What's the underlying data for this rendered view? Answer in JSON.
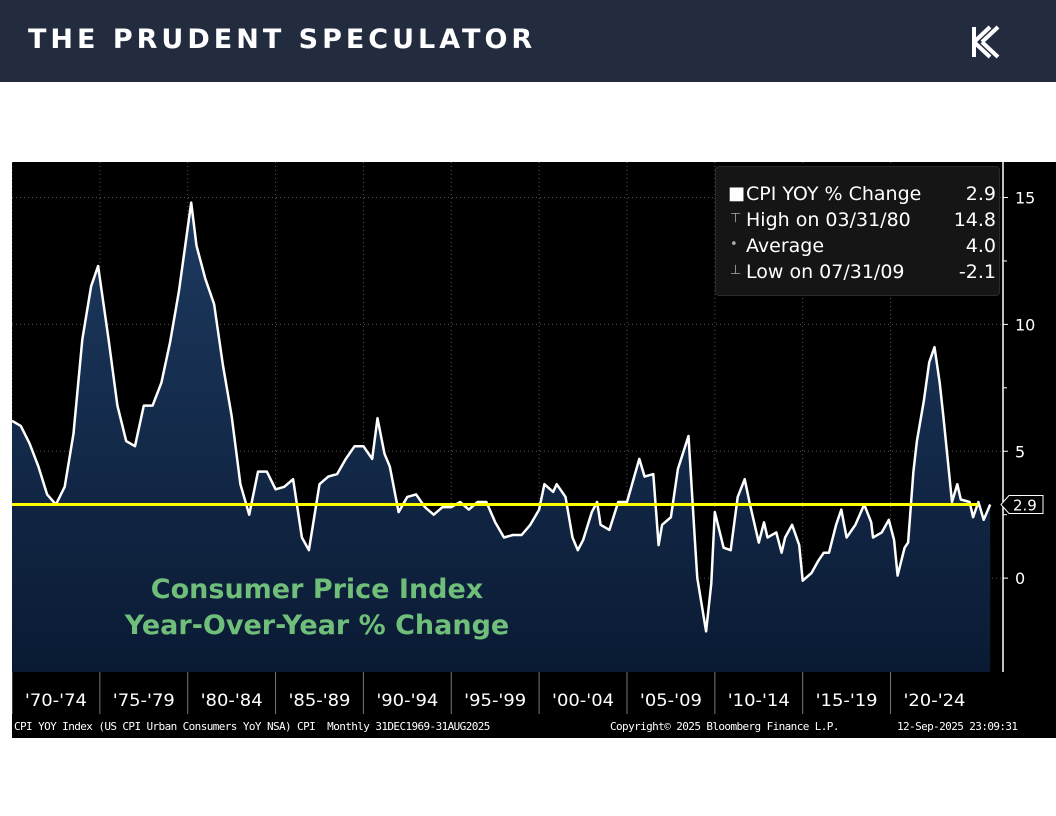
{
  "header": {
    "brand": "THE PRUDENT SPECULATOR",
    "logo_icon": "tps-k-logo-icon"
  },
  "chart_data": {
    "type": "area",
    "title": "Consumer Price Index",
    "subtitle": "Year-Over-Year % Change",
    "x_tick_labels": [
      "'70-'74",
      "'75-'79",
      "'80-'84",
      "'85-'89",
      "'90-'94",
      "'95-'99",
      "'00-'04",
      "'05-'09",
      "'10-'14",
      "'15-'19",
      "'20-'24"
    ],
    "y_ticks": [
      0,
      5,
      10,
      15
    ],
    "ylim": [
      -3.7,
      16.4
    ],
    "xlim": [
      1970.0,
      2026.4
    ],
    "grid": true,
    "legend_placement": "top-right",
    "legend": [
      {
        "label": "CPI YOY % Change",
        "value": "2.9"
      },
      {
        "label": "High on 03/31/80",
        "value": "14.8"
      },
      {
        "label": "Average",
        "value": "4.0"
      },
      {
        "label": "Low on 07/31/09",
        "value": "-2.1"
      }
    ],
    "last_value_label": "2.9",
    "reference_line": {
      "value": 2.9,
      "color": "#ffff00"
    },
    "colors": {
      "line": "#ffffff",
      "fill_top": "#1d3a60",
      "fill_bottom": "#0a1a33",
      "text_overlay": "#6fbf7a"
    },
    "series": [
      {
        "x": [
          1970.0,
          1970.5,
          1971.0,
          1971.5,
          1972.0,
          1972.5,
          1973.0,
          1973.5,
          1974.0,
          1974.5,
          1974.9,
          1975.5,
          1976.0,
          1976.5,
          1977.0,
          1977.5,
          1978.0,
          1978.5,
          1979.0,
          1979.5,
          1980.2,
          1980.5,
          1981.0,
          1981.5,
          1982.0,
          1982.5,
          1983.0,
          1983.5,
          1984.0,
          1984.5,
          1985.0,
          1985.5,
          1986.0,
          1986.5,
          1986.9,
          1987.5,
          1988.0,
          1988.5,
          1989.0,
          1989.5,
          1990.0,
          1990.5,
          1990.8,
          1991.2,
          1991.5,
          1992.0,
          1992.5,
          1993.0,
          1993.5,
          1994.0,
          1994.5,
          1995.0,
          1995.5,
          1996.0,
          1996.5,
          1997.0,
          1997.5,
          1998.0,
          1998.5,
          1999.0,
          1999.5,
          2000.0,
          2000.3,
          2000.8,
          2001.0,
          2001.5,
          2001.9,
          2002.2,
          2002.5,
          2003.0,
          2003.3,
          2003.5,
          2004.0,
          2004.5,
          2005.0,
          2005.7,
          2006.0,
          2006.5,
          2006.8,
          2007.0,
          2007.5,
          2007.9,
          2008.5,
          2008.9,
          2009.0,
          2009.5,
          2009.8,
          2010.0,
          2010.5,
          2010.9,
          2011.3,
          2011.7,
          2012.0,
          2012.5,
          2012.8,
          2013.0,
          2013.5,
          2013.8,
          2014.0,
          2014.4,
          2014.8,
          2015.0,
          2015.5,
          2015.9,
          2016.2,
          2016.5,
          2016.9,
          2017.2,
          2017.5,
          2018.0,
          2018.5,
          2018.9,
          2019.0,
          2019.5,
          2019.9,
          2020.2,
          2020.4,
          2020.8,
          2021.0,
          2021.3,
          2021.5,
          2021.9,
          2022.2,
          2022.5,
          2022.8,
          2023.0,
          2023.5,
          2023.8,
          2024.0,
          2024.5,
          2024.7,
          2025.0,
          2025.3,
          2025.67
        ],
        "y": [
          6.2,
          6.0,
          5.3,
          4.4,
          3.3,
          2.9,
          3.6,
          5.7,
          9.4,
          11.5,
          12.3,
          9.4,
          6.8,
          5.4,
          5.2,
          6.8,
          6.8,
          7.7,
          9.3,
          11.3,
          14.8,
          13.1,
          11.8,
          10.8,
          8.4,
          6.4,
          3.7,
          2.5,
          4.2,
          4.2,
          3.5,
          3.6,
          3.9,
          1.6,
          1.1,
          3.7,
          4.0,
          4.1,
          4.7,
          5.2,
          5.2,
          4.7,
          6.3,
          4.9,
          4.4,
          2.6,
          3.2,
          3.3,
          2.8,
          2.5,
          2.8,
          2.8,
          3.0,
          2.7,
          3.0,
          3.0,
          2.2,
          1.6,
          1.7,
          1.7,
          2.1,
          2.7,
          3.7,
          3.4,
          3.7,
          3.2,
          1.6,
          1.1,
          1.5,
          2.6,
          3.0,
          2.1,
          1.9,
          3.0,
          3.0,
          4.7,
          4.0,
          4.1,
          1.3,
          2.1,
          2.4,
          4.3,
          5.6,
          1.1,
          0.0,
          -2.1,
          -0.2,
          2.6,
          1.2,
          1.1,
          3.2,
          3.9,
          2.9,
          1.4,
          2.2,
          1.6,
          1.8,
          1.0,
          1.6,
          2.1,
          1.3,
          -0.1,
          0.2,
          0.7,
          1.0,
          1.0,
          2.1,
          2.7,
          1.6,
          2.1,
          2.9,
          2.2,
          1.6,
          1.8,
          2.3,
          1.5,
          0.1,
          1.2,
          1.4,
          4.2,
          5.4,
          7.0,
          8.5,
          9.1,
          7.7,
          6.4,
          3.0,
          3.7,
          3.1,
          3.0,
          2.4,
          3.0,
          2.3,
          2.9
        ]
      }
    ]
  },
  "footer": {
    "source": "CPI YOY Index (US CPI Urban Consumers YoY NSA) CPI  Monthly 31DEC1969-31AUG2025",
    "copyright": "Copyright© 2025 Bloomberg Finance L.P.",
    "timestamp": "12-Sep-2025 23:09:31"
  }
}
